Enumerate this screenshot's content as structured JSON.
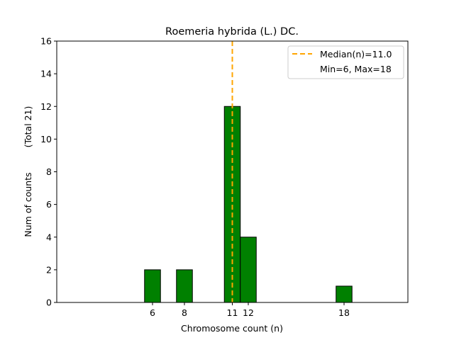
{
  "chart_data": {
    "type": "bar",
    "title": "Roemeria hybrida (L.) DC.",
    "xlabel": "Chromosome count (n)",
    "ylabel": "Num of counts",
    "ylabel_extra": "(Total 21)",
    "x": [
      6,
      8,
      11,
      12,
      18
    ],
    "values": [
      2,
      2,
      12,
      4,
      1
    ],
    "xticks": [
      6,
      8,
      11,
      12,
      18
    ],
    "yticks": [
      0,
      2,
      4,
      6,
      8,
      10,
      12,
      14,
      16
    ],
    "xlim": [
      0,
      22
    ],
    "ylim": [
      0,
      16
    ],
    "bar_width": 1,
    "bar_color": "#008000",
    "median": 11.0,
    "median_color": "#FFA500",
    "legend": {
      "placement": "top-right",
      "entries": [
        "Median(n)=11.0",
        "Min=6, Max=18"
      ]
    },
    "grid": false
  }
}
